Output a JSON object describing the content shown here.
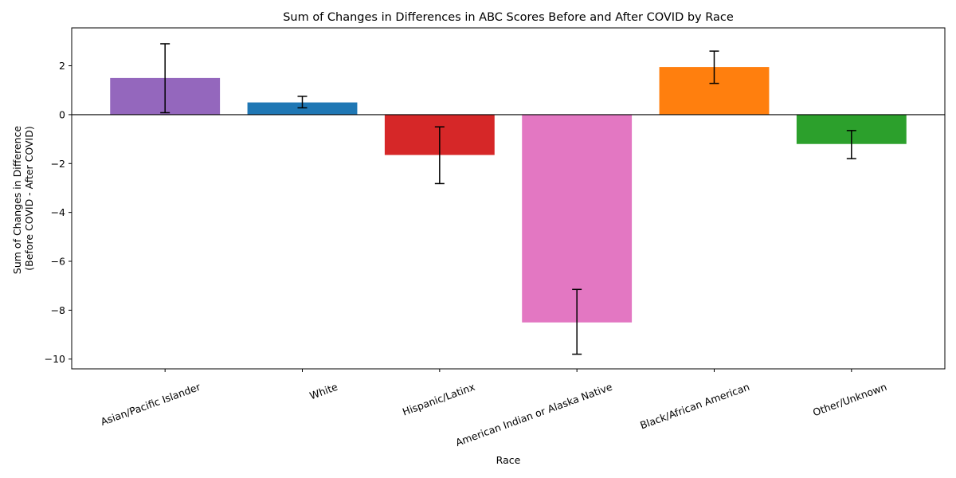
{
  "chart_data": {
    "type": "bar",
    "title": "Sum of Changes in Differences in ABC Scores Before and After COVID by Race",
    "xlabel": "Race",
    "ylabel_lines": [
      "Sum of Changes in Difference",
      "(Before COVID - After COVID)"
    ],
    "categories": [
      "Asian/Pacific Islander",
      "White",
      "Hispanic/Latinx",
      "American Indian or Alaska Native",
      "Black/African American",
      "Other/Unknown"
    ],
    "values": [
      1.5,
      0.5,
      -1.65,
      -8.5,
      1.95,
      -1.2
    ],
    "error_low": [
      0.08,
      0.28,
      -2.82,
      -9.8,
      1.28,
      -1.8
    ],
    "error_high": [
      2.9,
      0.75,
      -0.5,
      -7.15,
      2.6,
      -0.65
    ],
    "colors": [
      "#9467bd",
      "#1f77b4",
      "#d62728",
      "#e377c2",
      "#ff7f0e",
      "#2ca02c"
    ],
    "ylim": [
      -10.4,
      3.55
    ],
    "yticks": [
      2,
      0,
      -2,
      -4,
      -6,
      -8,
      -10
    ],
    "ytick_labels": [
      "2",
      "0",
      "−2",
      "−4",
      "−6",
      "−8",
      "−10"
    ],
    "zero_line": true,
    "grid": false,
    "legend": "none",
    "xtick_rotation_deg": 20
  }
}
